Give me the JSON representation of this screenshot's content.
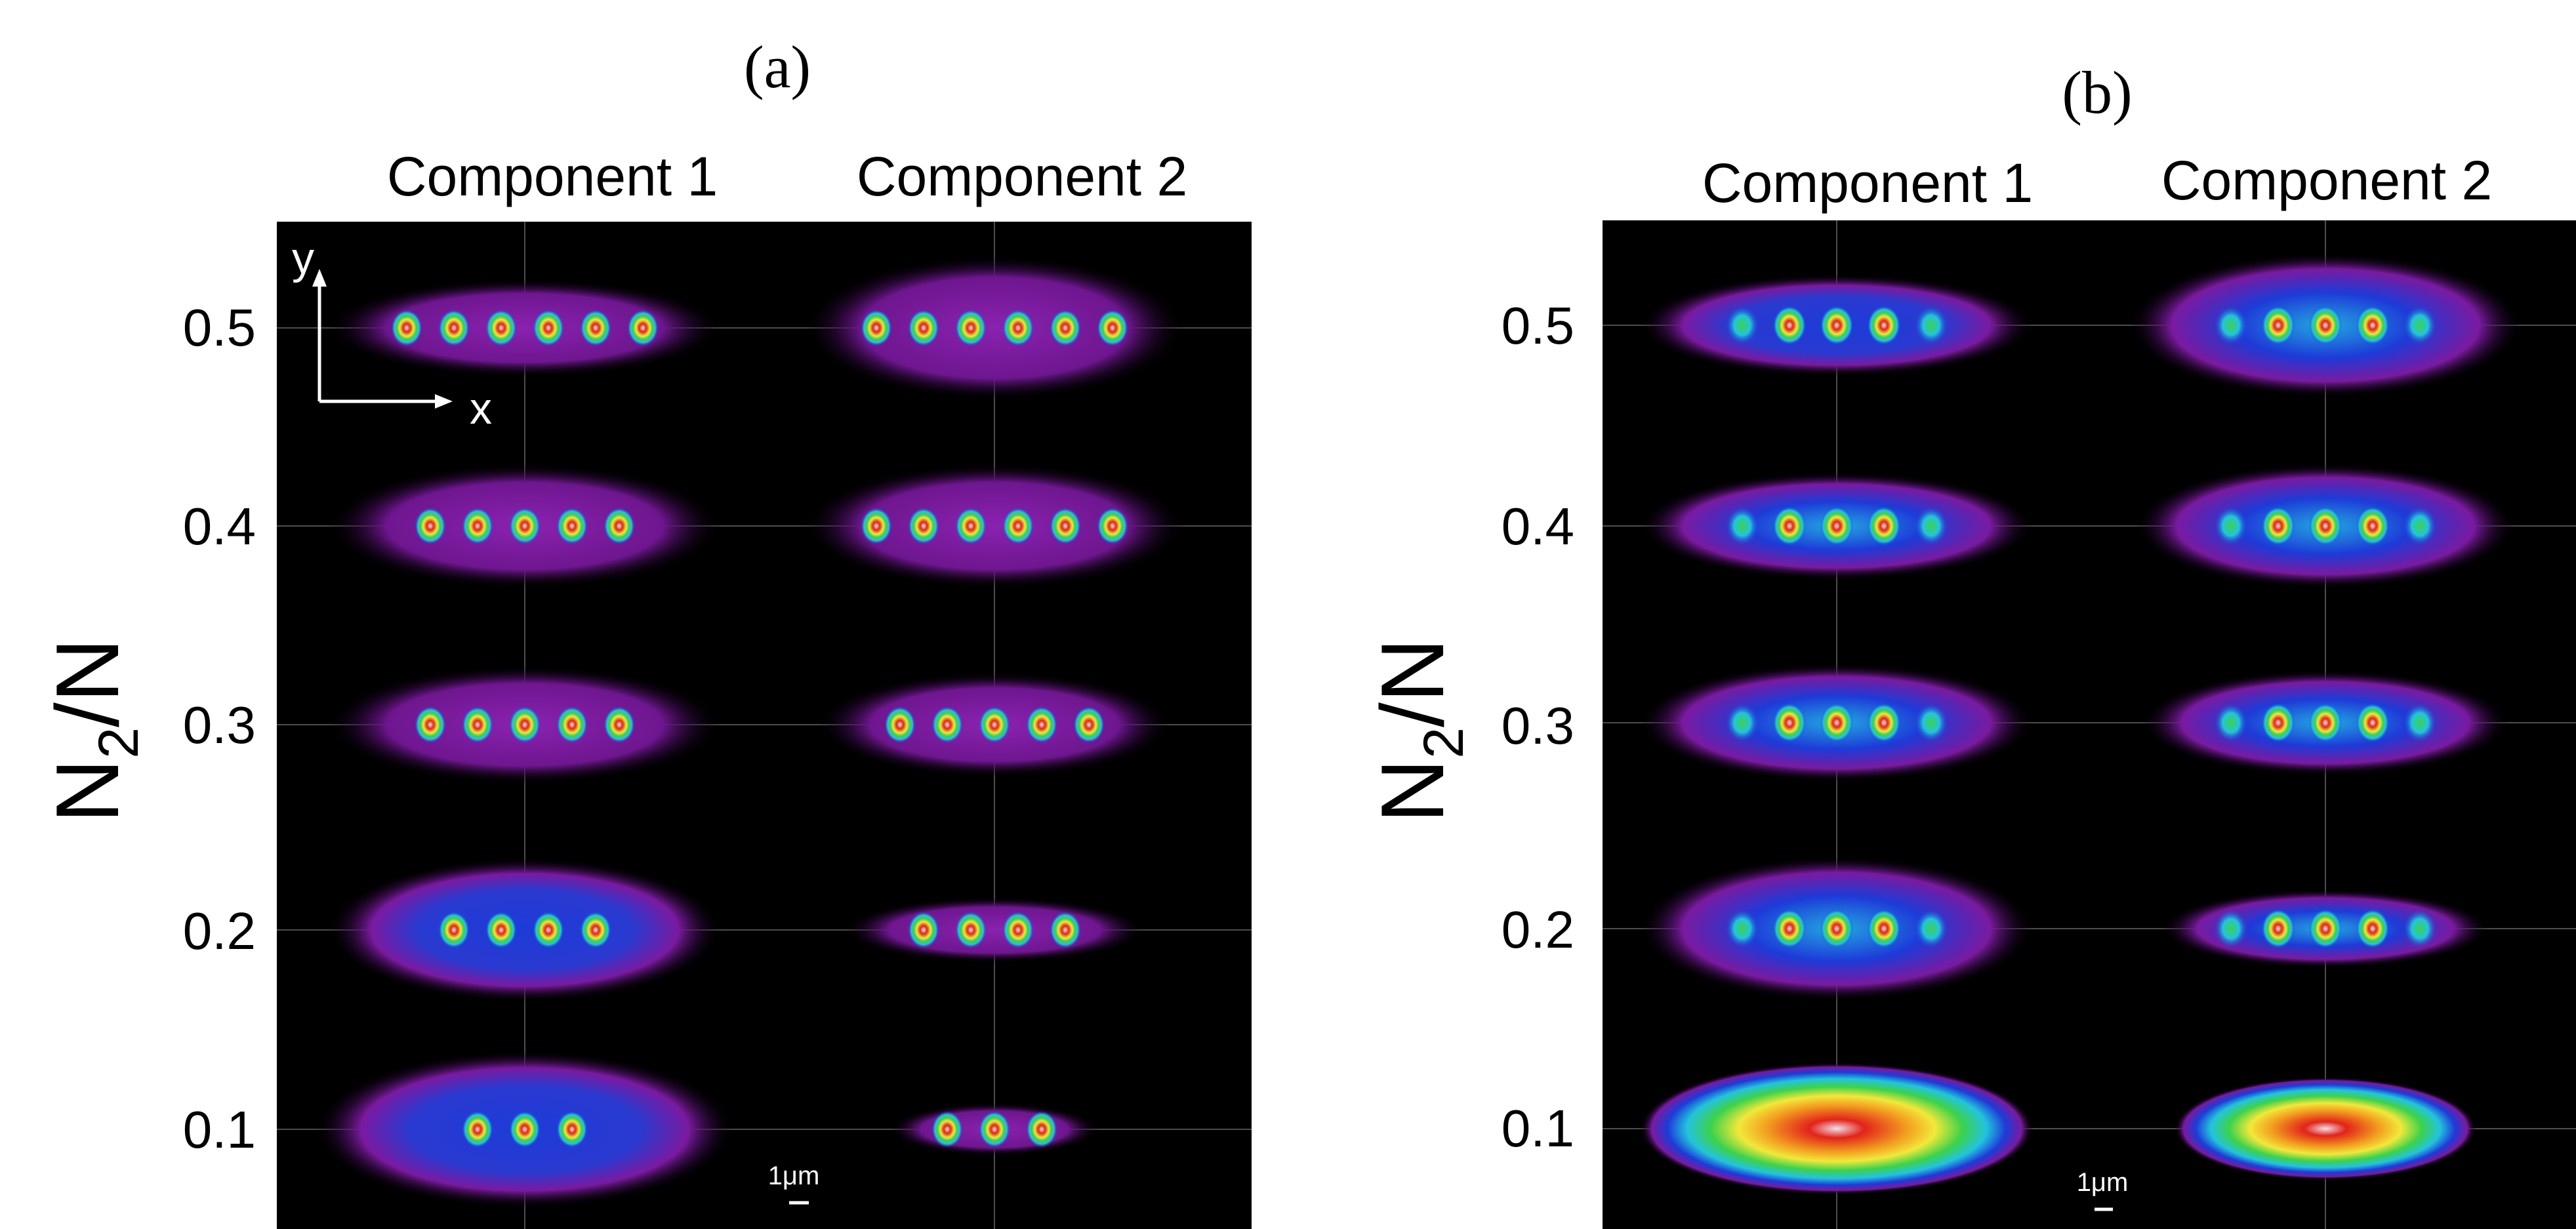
{
  "figure": {
    "panels": [
      {
        "label": "(a)",
        "column_titles": [
          "Component 1",
          "Component 2"
        ],
        "row_values": [
          "0.5",
          "0.4",
          "0.3",
          "0.2",
          "0.1"
        ],
        "ylabel_main": "N",
        "ylabel_sub": "2",
        "ylabel_tail": "/N",
        "axes_y": "y",
        "axes_x": "x",
        "scale_bar": "1μm",
        "peak_counts": {
          "component_1": [
            6,
            5,
            5,
            4,
            3
          ],
          "component_2": [
            6,
            6,
            5,
            4,
            3
          ]
        }
      },
      {
        "label": "(b)",
        "column_titles": [
          "Component 1",
          "Component 2"
        ],
        "row_values": [
          "0.5",
          "0.4",
          "0.3",
          "0.2",
          "0.1"
        ],
        "ylabel_main": "N",
        "ylabel_sub": "2",
        "ylabel_tail": "/N",
        "scale_bar": "1μm",
        "peak_counts": {
          "component_1": [
            5,
            5,
            5,
            5,
            0
          ],
          "component_2": [
            5,
            5,
            5,
            5,
            0
          ]
        }
      }
    ],
    "colors": {
      "background": "#000000",
      "halo": "#7a1aa0",
      "blue": "#1d3bd8",
      "cyan": "#22c4dd",
      "green": "#3cd24a",
      "yellow": "#f2e83a",
      "red": "#e2231a",
      "core": "#f0e0e0"
    }
  }
}
